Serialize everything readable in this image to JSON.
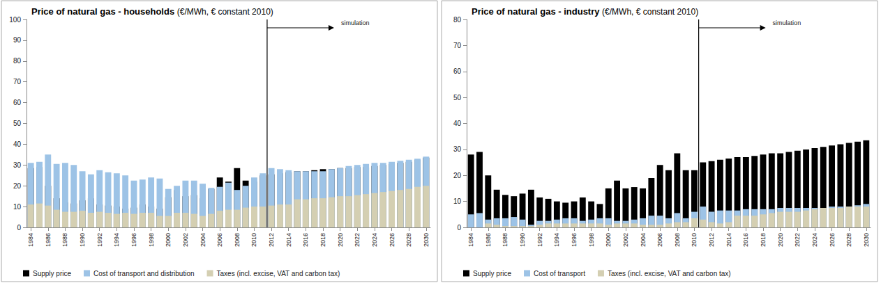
{
  "chart_data": [
    {
      "type": "bar",
      "title": "Price of natural gas - households (€/MWh, € constant 2010)",
      "x": [
        1984,
        1985,
        1986,
        1987,
        1988,
        1989,
        1990,
        1991,
        1992,
        1993,
        1994,
        1995,
        1996,
        1997,
        1998,
        1999,
        2000,
        2001,
        2002,
        2003,
        2004,
        2005,
        2006,
        2007,
        2008,
        2009,
        2010,
        2011,
        2012,
        2013,
        2014,
        2015,
        2016,
        2017,
        2018,
        2019,
        2020,
        2021,
        2022,
        2023,
        2024,
        2025,
        2026,
        2027,
        2028,
        2029,
        2030
      ],
      "xlim": [
        1983.5,
        2030.5
      ],
      "xticks": [
        1984,
        1986,
        1988,
        1990,
        1992,
        1994,
        1996,
        1998,
        2000,
        2002,
        2004,
        2006,
        2008,
        2010,
        2012,
        2014,
        2016,
        2018,
        2020,
        2022,
        2024,
        2026,
        2028,
        2030
      ],
      "ylim": [
        0,
        100
      ],
      "yticks": [
        0,
        10,
        20,
        30,
        40,
        50,
        60,
        70,
        80,
        90,
        100
      ],
      "stacked": true,
      "grid": false,
      "legend": "bottom",
      "data_labels": false,
      "annotations": [
        {
          "text": "simulation",
          "x": 2011.5
        }
      ],
      "series": [
        {
          "name": "Supply price",
          "color": "#000000",
          "values": [
            28.5,
            29,
            20,
            14,
            12,
            11.5,
            13,
            14,
            11,
            10.5,
            10,
            9,
            9.5,
            11,
            10,
            9,
            14.5,
            18,
            15,
            15.5,
            14,
            18.5,
            24,
            22,
            28.5,
            22.5,
            22,
            25,
            25.5,
            26,
            26.5,
            27,
            27,
            27.5,
            28,
            28,
            28.5,
            28.5,
            29,
            29,
            29.5,
            30,
            30.5,
            31,
            31.5,
            32.5,
            33.5
          ]
        },
        {
          "name": "Cost of transport and distribution",
          "color": "#9dc3e6",
          "values": [
            31,
            31.5,
            35,
            30.5,
            31,
            30,
            27,
            25.5,
            27.5,
            26.5,
            26,
            25,
            22.5,
            23,
            24,
            23.5,
            18.5,
            20,
            22.5,
            22.5,
            21,
            19,
            19.5,
            21.5,
            18,
            20,
            24,
            26,
            28.5,
            28,
            27.5,
            27,
            27,
            27,
            27,
            28,
            28.5,
            29.5,
            30,
            30.5,
            31,
            31,
            31.5,
            32,
            32.5,
            33,
            34
          ]
        },
        {
          "name": "Taxes (incl. excise, VAT and carbon tax)",
          "color": "#d4cfb2",
          "values": [
            11,
            11.5,
            10.5,
            8.5,
            7.5,
            7.5,
            8,
            7,
            7.5,
            7,
            6.5,
            7,
            6.5,
            7,
            7,
            5.5,
            5.5,
            7,
            7,
            6.5,
            5.5,
            6.5,
            8,
            8.5,
            8.5,
            9.5,
            10,
            10,
            10.5,
            11,
            11,
            13.5,
            13.5,
            14,
            14,
            14.5,
            15,
            15,
            15.5,
            16,
            16.5,
            17,
            17.5,
            18,
            18.5,
            19.5,
            20
          ]
        }
      ]
    },
    {
      "type": "bar",
      "title": "Price of natural gas - industry (€/MWh, € constant 2010)",
      "x": [
        1984,
        1985,
        1986,
        1987,
        1988,
        1989,
        1990,
        1991,
        1992,
        1993,
        1994,
        1995,
        1996,
        1997,
        1998,
        1999,
        2000,
        2001,
        2002,
        2003,
        2004,
        2005,
        2006,
        2007,
        2008,
        2009,
        2010,
        2011,
        2012,
        2013,
        2014,
        2015,
        2016,
        2017,
        2018,
        2019,
        2020,
        2021,
        2022,
        2023,
        2024,
        2025,
        2026,
        2027,
        2028,
        2029,
        2030
      ],
      "xlim": [
        1983.5,
        2030.5
      ],
      "xticks": [
        1984,
        1986,
        1988,
        1990,
        1992,
        1994,
        1996,
        1998,
        2000,
        2002,
        2004,
        2006,
        2008,
        2010,
        2012,
        2014,
        2016,
        2018,
        2020,
        2022,
        2024,
        2026,
        2028,
        2030
      ],
      "ylim": [
        0,
        80
      ],
      "yticks": [
        0,
        10,
        20,
        30,
        40,
        50,
        60,
        70,
        80
      ],
      "stacked": true,
      "grid": false,
      "legend": "bottom",
      "data_labels": false,
      "annotations": [
        {
          "text": "simulation",
          "x": 2010.5
        }
      ],
      "series": [
        {
          "name": "Supply price",
          "color": "#000000",
          "values": [
            28,
            29,
            20,
            14.5,
            12.5,
            12,
            13,
            14.5,
            11.5,
            11,
            10,
            9.5,
            10,
            11.5,
            10,
            9,
            15,
            18,
            15,
            15.5,
            15,
            19,
            24,
            22,
            28.5,
            22,
            22,
            25,
            25.5,
            26,
            26.5,
            27,
            27,
            27.5,
            28,
            28.5,
            28.5,
            29,
            29.5,
            30,
            30.5,
            31,
            31.5,
            32,
            32.5,
            33,
            33.5
          ]
        },
        {
          "name": "Cost of transport",
          "color": "#9dc3e6",
          "values": [
            5,
            5.5,
            3,
            3.5,
            3.5,
            4,
            3,
            1,
            2.5,
            2.5,
            3,
            3.5,
            3.5,
            2.5,
            3,
            3.5,
            3.5,
            2.5,
            2.5,
            3,
            3.5,
            4.5,
            4.5,
            3.5,
            5.5,
            3.5,
            6,
            8,
            6,
            6.5,
            6.5,
            6.5,
            7,
            7,
            7,
            7,
            7.5,
            7.5,
            7.5,
            7.5,
            7.5,
            7.5,
            8,
            8,
            8,
            8.5,
            9
          ]
        },
        {
          "name": "Taxes (incl. excise, VAT and carbon tax)",
          "color": "#d4cfb2",
          "values": [
            0,
            0,
            1.5,
            1,
            0.5,
            0.5,
            0.5,
            0.5,
            1,
            1.5,
            1.5,
            1.5,
            1.5,
            1.5,
            1.5,
            1.5,
            1,
            1.5,
            1.5,
            1.5,
            1,
            1,
            1,
            1.5,
            2,
            2,
            3.5,
            3,
            2,
            1.5,
            2,
            4.5,
            4.5,
            4.5,
            5,
            5.5,
            6,
            6,
            6,
            6.5,
            7,
            7.5,
            7.5,
            7.5,
            8,
            8,
            8
          ]
        }
      ]
    }
  ]
}
